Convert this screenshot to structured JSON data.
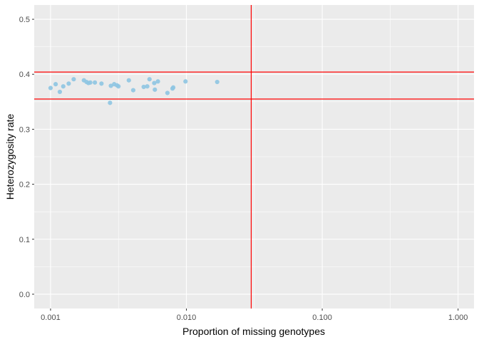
{
  "chart_data": {
    "type": "scatter",
    "xlabel": "Proportion of missing genotypes",
    "ylabel": "Heterozygosity rate",
    "x_scale": "log10",
    "xlim": [
      0.000758,
      1.31
    ],
    "ylim": [
      -0.026,
      0.526
    ],
    "x_ticks": [
      0.001,
      0.01,
      0.1,
      1.0
    ],
    "x_tick_labels": [
      "0.001",
      "0.010",
      "0.100",
      "1.000"
    ],
    "y_ticks": [
      0.0,
      0.1,
      0.2,
      0.3,
      0.4,
      0.5
    ],
    "y_tick_labels": [
      "0.0",
      "0.1",
      "0.2",
      "0.3",
      "0.4",
      "0.5"
    ],
    "grid": true,
    "colors": {
      "panel": "#EBEBEB",
      "grid": "#FFFFFF",
      "points": "#8EC5E2",
      "reference_lines": "#FF0000",
      "tick_text": "#4D4D4D"
    },
    "reference_lines": {
      "horizontal_y": [
        0.404,
        0.355
      ],
      "vertical_x": [
        0.03
      ]
    },
    "points": [
      {
        "x": 0.001,
        "y": 0.375
      },
      {
        "x": 0.00109,
        "y": 0.382
      },
      {
        "x": 0.00117,
        "y": 0.368
      },
      {
        "x": 0.00124,
        "y": 0.378
      },
      {
        "x": 0.00136,
        "y": 0.383
      },
      {
        "x": 0.00148,
        "y": 0.391
      },
      {
        "x": 0.00176,
        "y": 0.389
      },
      {
        "x": 0.00184,
        "y": 0.386
      },
      {
        "x": 0.0019,
        "y": 0.384
      },
      {
        "x": 0.00196,
        "y": 0.385
      },
      {
        "x": 0.00212,
        "y": 0.385
      },
      {
        "x": 0.00237,
        "y": 0.383
      },
      {
        "x": 0.00274,
        "y": 0.348
      },
      {
        "x": 0.00278,
        "y": 0.379
      },
      {
        "x": 0.00294,
        "y": 0.382
      },
      {
        "x": 0.00308,
        "y": 0.38
      },
      {
        "x": 0.00316,
        "y": 0.378
      },
      {
        "x": 0.00377,
        "y": 0.389
      },
      {
        "x": 0.00406,
        "y": 0.371
      },
      {
        "x": 0.00485,
        "y": 0.377
      },
      {
        "x": 0.00515,
        "y": 0.378
      },
      {
        "x": 0.00535,
        "y": 0.391
      },
      {
        "x": 0.0058,
        "y": 0.384
      },
      {
        "x": 0.00586,
        "y": 0.372
      },
      {
        "x": 0.00617,
        "y": 0.387
      },
      {
        "x": 0.00725,
        "y": 0.366
      },
      {
        "x": 0.0079,
        "y": 0.374
      },
      {
        "x": 0.008,
        "y": 0.376
      },
      {
        "x": 0.00985,
        "y": 0.387
      },
      {
        "x": 0.01685,
        "y": 0.386
      }
    ]
  }
}
